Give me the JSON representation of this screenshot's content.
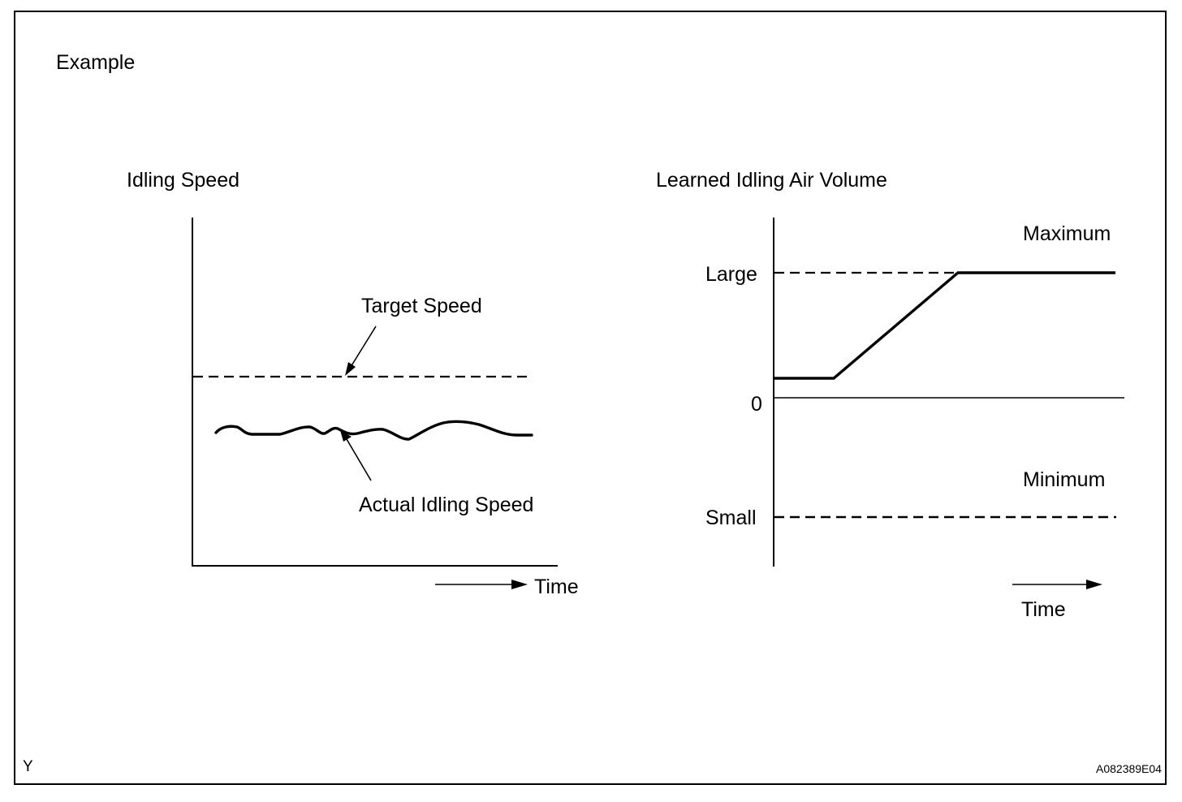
{
  "example_label": "Example",
  "left_chart": {
    "title": "Idling Speed",
    "target_label": "Target Speed",
    "actual_label": "Actual Idling Speed",
    "time_label": "Time"
  },
  "right_chart": {
    "title": "Learned Idling Air Volume",
    "max_label": "Maximum",
    "large_label": "Large",
    "zero_label": "0",
    "min_label": "Minimum",
    "small_label": "Small",
    "time_label": "Time"
  },
  "corner_left": "Y",
  "corner_right": "A082389E04"
}
